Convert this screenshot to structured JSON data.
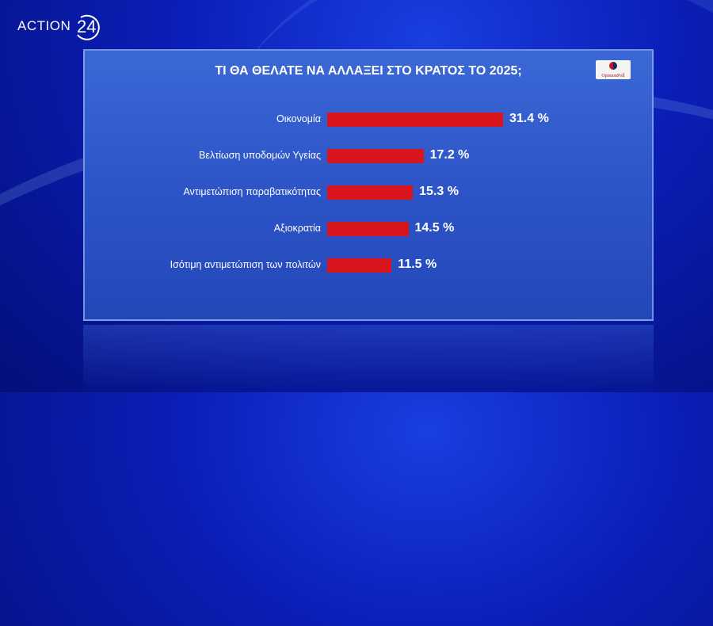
{
  "brand": {
    "logo_text": "ACTION",
    "logo_number": "24"
  },
  "source_logo": "OpinionPoll",
  "colors": {
    "bar": "#d8141c",
    "panel": "#2d55c8",
    "background": "#0a1fb8"
  },
  "chart_data": {
    "type": "bar",
    "orientation": "horizontal",
    "title": "ΤΙ ΘΑ ΘΕΛΑΤΕ ΝΑ ΑΛΛΑΞΕΙ ΣΤΟ ΚΡΑΤΟΣ ΤΟ 2025;",
    "categories": [
      "Οικονομία",
      "Βελτίωση υποδομών Υγείας",
      "Αντιμετώπιση παραβατικότητας",
      "Αξιοκρατία",
      "Ισότιμη αντιμετώπιση των πολιτών"
    ],
    "values": [
      31.4,
      17.2,
      15.3,
      14.5,
      11.5
    ],
    "value_labels": [
      "31.4 %",
      "17.2 %",
      "15.3 %",
      "14.5 %",
      "11.5 %"
    ],
    "grid": false
  }
}
